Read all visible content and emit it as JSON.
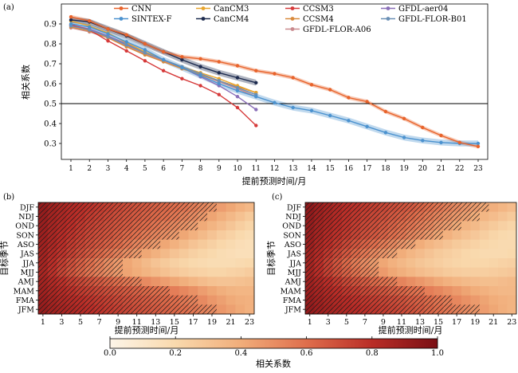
{
  "chart_data": [
    {
      "panel": "(a)",
      "type": "line",
      "xlabel": "提前预测时间/月",
      "ylabel": "相关系数",
      "xlim": [
        1,
        23
      ],
      "ylim": [
        0.22,
        1.0
      ],
      "x_ticks": [
        1,
        2,
        3,
        4,
        5,
        6,
        7,
        8,
        9,
        10,
        11,
        12,
        13,
        14,
        15,
        16,
        17,
        18,
        19,
        20,
        21,
        22,
        23
      ],
      "y_ticks": [
        0.3,
        0.4,
        0.5,
        0.6,
        0.7,
        0.8,
        0.9
      ],
      "reference_line": 0.5,
      "legend_placement": "top",
      "series": [
        {
          "name": "CNN",
          "color": "#e8632b",
          "band": 0.01,
          "x": [
            1,
            2,
            3,
            4,
            5,
            6,
            7,
            8,
            9,
            10,
            11,
            12,
            13,
            14,
            15,
            16,
            17,
            18,
            19,
            20,
            21,
            22,
            23
          ],
          "values": [
            0.935,
            0.915,
            0.875,
            0.845,
            0.8,
            0.76,
            0.735,
            0.725,
            0.71,
            0.69,
            0.665,
            0.65,
            0.63,
            0.595,
            0.57,
            0.53,
            0.51,
            0.46,
            0.425,
            0.38,
            0.34,
            0.305,
            0.285
          ]
        },
        {
          "name": "SINTEX-F",
          "color": "#4b92cf",
          "band": 0.015,
          "x": [
            1,
            2,
            3,
            4,
            5,
            6,
            7,
            8,
            9,
            10,
            11,
            12,
            13,
            14,
            15,
            16,
            17,
            18,
            19,
            20,
            21,
            22,
            23
          ],
          "values": [
            0.9,
            0.885,
            0.85,
            0.81,
            0.77,
            0.72,
            0.68,
            0.64,
            0.6,
            0.565,
            0.535,
            0.505,
            0.48,
            0.465,
            0.44,
            0.415,
            0.385,
            0.355,
            0.33,
            0.315,
            0.305,
            0.3,
            0.3
          ]
        },
        {
          "name": "CanCM3",
          "color": "#e8a42b",
          "band": 0,
          "x": [
            1,
            2,
            3,
            4,
            5,
            6,
            7,
            8,
            9,
            10,
            11
          ],
          "values": [
            0.915,
            0.89,
            0.855,
            0.805,
            0.76,
            0.72,
            0.685,
            0.655,
            0.625,
            0.59,
            0.555
          ]
        },
        {
          "name": "CanCM4",
          "color": "#1c2a4e",
          "band": 0.015,
          "x": [
            1,
            2,
            3,
            4,
            5,
            6,
            7,
            8,
            9,
            10,
            11
          ],
          "values": [
            0.92,
            0.91,
            0.875,
            0.84,
            0.8,
            0.76,
            0.72,
            0.685,
            0.655,
            0.63,
            0.605
          ]
        },
        {
          "name": "CCSM3",
          "color": "#d63a3a",
          "band": 0,
          "x": [
            1,
            2,
            3,
            4,
            5,
            6,
            7,
            8,
            9,
            10,
            11
          ],
          "values": [
            0.895,
            0.87,
            0.815,
            0.765,
            0.715,
            0.665,
            0.625,
            0.59,
            0.545,
            0.48,
            0.39
          ]
        },
        {
          "name": "CCSM4",
          "color": "#d98a3c",
          "band": 0,
          "x": [
            1,
            2,
            3,
            4,
            5,
            6,
            7,
            8,
            9,
            10,
            11
          ],
          "values": [
            0.885,
            0.865,
            0.83,
            0.785,
            0.745,
            0.71,
            0.675,
            0.645,
            0.615,
            0.585,
            0.555
          ]
        },
        {
          "name": "GFDL-aer04",
          "color": "#8a6fb8",
          "band": 0,
          "x": [
            1,
            2,
            3,
            4,
            5,
            6,
            7,
            8,
            9,
            10,
            11
          ],
          "values": [
            0.895,
            0.875,
            0.84,
            0.8,
            0.76,
            0.72,
            0.68,
            0.635,
            0.59,
            0.535,
            0.47
          ]
        },
        {
          "name": "GFDL-FLOR-A06",
          "color": "#c98a8e",
          "band": 0,
          "x": [
            1,
            2,
            3,
            4,
            5,
            6,
            7,
            8,
            9,
            10,
            11
          ],
          "values": [
            0.88,
            0.86,
            0.83,
            0.79,
            0.75,
            0.715,
            0.68,
            0.645,
            0.61,
            0.575,
            0.535
          ]
        },
        {
          "name": "GFDL-FLOR-B01",
          "color": "#6a8fb5",
          "band": 0,
          "x": [
            1,
            2,
            3,
            4,
            5,
            6,
            7,
            8,
            9,
            10,
            11
          ],
          "values": [
            0.89,
            0.87,
            0.835,
            0.795,
            0.755,
            0.72,
            0.685,
            0.65,
            0.615,
            0.58,
            0.545
          ]
        }
      ]
    },
    {
      "panel": "(b)",
      "type": "heatmap",
      "xlabel": "提前预测时间/月",
      "ylabel": "目标季节",
      "x_tick_labels": [
        "1",
        "3",
        "5",
        "7",
        "9",
        "11",
        "13",
        "15",
        "17",
        "19",
        "21",
        "23"
      ],
      "y_categories": [
        "DJF",
        "NDJ",
        "OND",
        "SON",
        "ASO",
        "JAS",
        "JJA",
        "MJJ",
        "AMJ",
        "MAM",
        "FMA",
        "JFM"
      ],
      "n_leads": 23,
      "hatched": "significant correlations (hatched region)",
      "significant_lead_limit": [
        19,
        18,
        17,
        15,
        13,
        11,
        9,
        9,
        11,
        14,
        17,
        19
      ],
      "values_note": "approximate",
      "values": [
        [
          0.92,
          0.88,
          0.85,
          0.82,
          0.8,
          0.78,
          0.76,
          0.74,
          0.72,
          0.7,
          0.68,
          0.66,
          0.64,
          0.62,
          0.6,
          0.58,
          0.55,
          0.52,
          0.49,
          0.45,
          0.42,
          0.38,
          0.35
        ],
        [
          0.91,
          0.87,
          0.84,
          0.81,
          0.79,
          0.76,
          0.74,
          0.72,
          0.7,
          0.68,
          0.66,
          0.64,
          0.62,
          0.6,
          0.57,
          0.54,
          0.51,
          0.47,
          0.43,
          0.39,
          0.35,
          0.31,
          0.27
        ],
        [
          0.9,
          0.86,
          0.83,
          0.8,
          0.77,
          0.74,
          0.72,
          0.7,
          0.68,
          0.66,
          0.63,
          0.61,
          0.58,
          0.55,
          0.52,
          0.49,
          0.45,
          0.41,
          0.37,
          0.33,
          0.29,
          0.25,
          0.22
        ],
        [
          0.89,
          0.85,
          0.81,
          0.78,
          0.75,
          0.72,
          0.7,
          0.68,
          0.65,
          0.62,
          0.59,
          0.56,
          0.53,
          0.5,
          0.46,
          0.42,
          0.38,
          0.34,
          0.3,
          0.26,
          0.23,
          0.2,
          0.18
        ],
        [
          0.88,
          0.84,
          0.8,
          0.76,
          0.73,
          0.7,
          0.67,
          0.64,
          0.61,
          0.57,
          0.53,
          0.5,
          0.46,
          0.42,
          0.38,
          0.34,
          0.3,
          0.27,
          0.24,
          0.21,
          0.19,
          0.17,
          0.16
        ],
        [
          0.87,
          0.82,
          0.78,
          0.74,
          0.7,
          0.66,
          0.62,
          0.58,
          0.54,
          0.5,
          0.46,
          0.42,
          0.38,
          0.34,
          0.3,
          0.27,
          0.24,
          0.22,
          0.2,
          0.18,
          0.17,
          0.16,
          0.16
        ],
        [
          0.86,
          0.8,
          0.75,
          0.7,
          0.65,
          0.6,
          0.55,
          0.5,
          0.46,
          0.42,
          0.38,
          0.34,
          0.3,
          0.27,
          0.24,
          0.22,
          0.2,
          0.19,
          0.18,
          0.18,
          0.18,
          0.19,
          0.2
        ],
        [
          0.85,
          0.79,
          0.73,
          0.68,
          0.63,
          0.58,
          0.54,
          0.5,
          0.46,
          0.43,
          0.4,
          0.37,
          0.34,
          0.31,
          0.28,
          0.26,
          0.24,
          0.23,
          0.22,
          0.22,
          0.23,
          0.24,
          0.26
        ],
        [
          0.87,
          0.83,
          0.79,
          0.75,
          0.72,
          0.69,
          0.66,
          0.63,
          0.6,
          0.57,
          0.54,
          0.51,
          0.48,
          0.45,
          0.42,
          0.39,
          0.36,
          0.33,
          0.31,
          0.3,
          0.3,
          0.31,
          0.32
        ],
        [
          0.88,
          0.85,
          0.82,
          0.79,
          0.76,
          0.74,
          0.72,
          0.7,
          0.68,
          0.66,
          0.64,
          0.62,
          0.6,
          0.58,
          0.55,
          0.52,
          0.49,
          0.45,
          0.42,
          0.39,
          0.37,
          0.36,
          0.36
        ],
        [
          0.9,
          0.87,
          0.84,
          0.82,
          0.8,
          0.78,
          0.76,
          0.74,
          0.72,
          0.7,
          0.68,
          0.66,
          0.64,
          0.62,
          0.6,
          0.57,
          0.54,
          0.51,
          0.47,
          0.44,
          0.41,
          0.39,
          0.38
        ],
        [
          0.91,
          0.88,
          0.86,
          0.84,
          0.82,
          0.8,
          0.78,
          0.76,
          0.74,
          0.72,
          0.7,
          0.68,
          0.66,
          0.64,
          0.62,
          0.6,
          0.57,
          0.54,
          0.51,
          0.47,
          0.44,
          0.41,
          0.38
        ]
      ]
    },
    {
      "panel": "(c)",
      "type": "heatmap",
      "xlabel": "提前预测时间/月",
      "ylabel": "目标季节",
      "x_tick_labels": [
        "1",
        "3",
        "5",
        "7",
        "9",
        "11",
        "13",
        "15",
        "17",
        "19",
        "21",
        "23"
      ],
      "y_categories": [
        "DJF",
        "NDJ",
        "OND",
        "SON",
        "ASO",
        "JAS",
        "JJA",
        "MJJ",
        "AMJ",
        "MAM",
        "FMA",
        "JFM"
      ],
      "n_leads": 23,
      "hatched": "significant correlations (hatched region)",
      "significant_lead_limit": [
        20,
        19,
        17,
        15,
        12,
        10,
        8,
        8,
        10,
        13,
        16,
        19
      ],
      "values_note": "approximate",
      "values": [
        [
          0.93,
          0.89,
          0.86,
          0.83,
          0.8,
          0.78,
          0.76,
          0.74,
          0.72,
          0.7,
          0.68,
          0.66,
          0.63,
          0.6,
          0.57,
          0.54,
          0.51,
          0.48,
          0.45,
          0.42,
          0.39,
          0.36,
          0.33
        ],
        [
          0.92,
          0.88,
          0.85,
          0.82,
          0.79,
          0.77,
          0.74,
          0.72,
          0.7,
          0.67,
          0.65,
          0.62,
          0.59,
          0.56,
          0.53,
          0.5,
          0.47,
          0.44,
          0.4,
          0.36,
          0.33,
          0.3,
          0.27
        ],
        [
          0.91,
          0.87,
          0.84,
          0.81,
          0.78,
          0.75,
          0.72,
          0.7,
          0.67,
          0.64,
          0.61,
          0.58,
          0.55,
          0.52,
          0.48,
          0.45,
          0.41,
          0.37,
          0.34,
          0.3,
          0.27,
          0.24,
          0.22
        ],
        [
          0.9,
          0.86,
          0.82,
          0.79,
          0.76,
          0.73,
          0.7,
          0.67,
          0.64,
          0.6,
          0.57,
          0.53,
          0.5,
          0.46,
          0.42,
          0.38,
          0.34,
          0.31,
          0.28,
          0.25,
          0.22,
          0.2,
          0.19
        ],
        [
          0.89,
          0.84,
          0.8,
          0.76,
          0.72,
          0.68,
          0.64,
          0.6,
          0.56,
          0.52,
          0.48,
          0.44,
          0.4,
          0.36,
          0.33,
          0.3,
          0.27,
          0.25,
          0.23,
          0.21,
          0.2,
          0.19,
          0.19
        ],
        [
          0.87,
          0.82,
          0.77,
          0.72,
          0.67,
          0.62,
          0.57,
          0.52,
          0.48,
          0.44,
          0.4,
          0.36,
          0.33,
          0.3,
          0.27,
          0.25,
          0.23,
          0.21,
          0.2,
          0.19,
          0.19,
          0.19,
          0.2
        ],
        [
          0.86,
          0.8,
          0.74,
          0.68,
          0.62,
          0.56,
          0.51,
          0.46,
          0.42,
          0.38,
          0.35,
          0.32,
          0.29,
          0.27,
          0.25,
          0.23,
          0.22,
          0.21,
          0.21,
          0.21,
          0.22,
          0.23,
          0.24
        ],
        [
          0.86,
          0.8,
          0.74,
          0.69,
          0.64,
          0.59,
          0.54,
          0.5,
          0.46,
          0.42,
          0.39,
          0.36,
          0.33,
          0.31,
          0.29,
          0.27,
          0.26,
          0.25,
          0.25,
          0.25,
          0.26,
          0.27,
          0.28
        ],
        [
          0.88,
          0.84,
          0.8,
          0.76,
          0.72,
          0.69,
          0.66,
          0.62,
          0.59,
          0.56,
          0.53,
          0.5,
          0.47,
          0.44,
          0.41,
          0.38,
          0.36,
          0.34,
          0.33,
          0.32,
          0.32,
          0.33,
          0.34
        ],
        [
          0.89,
          0.86,
          0.83,
          0.8,
          0.77,
          0.75,
          0.72,
          0.7,
          0.68,
          0.65,
          0.63,
          0.6,
          0.58,
          0.55,
          0.52,
          0.49,
          0.46,
          0.43,
          0.4,
          0.38,
          0.36,
          0.35,
          0.35
        ],
        [
          0.91,
          0.88,
          0.85,
          0.83,
          0.81,
          0.79,
          0.77,
          0.75,
          0.73,
          0.71,
          0.69,
          0.66,
          0.64,
          0.61,
          0.58,
          0.55,
          0.52,
          0.49,
          0.46,
          0.43,
          0.4,
          0.38,
          0.37
        ],
        [
          0.92,
          0.89,
          0.87,
          0.85,
          0.83,
          0.81,
          0.79,
          0.77,
          0.75,
          0.73,
          0.71,
          0.69,
          0.66,
          0.63,
          0.6,
          0.57,
          0.54,
          0.51,
          0.48,
          0.45,
          0.42,
          0.39,
          0.37
        ]
      ]
    }
  ],
  "colorbar": {
    "label": "相关系数",
    "range": [
      0.0,
      1.0
    ],
    "tick_labels": [
      "0.0",
      "0.2",
      "0.4",
      "0.6",
      "0.8",
      "1.0"
    ],
    "colors": [
      "#fdf5e8",
      "#f9d9ad",
      "#f1ad7a",
      "#df6e4c",
      "#b92d27",
      "#7a0f14"
    ]
  }
}
